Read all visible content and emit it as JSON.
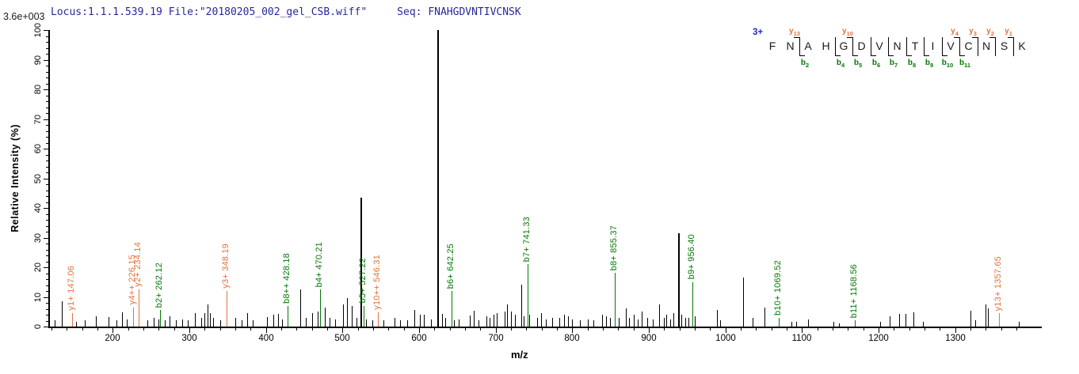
{
  "header": {
    "locus_file": "Locus:1.1.1.539.19 File:\"20180205_002_gel_CSB.wiff\"",
    "seq_label": "Seq:",
    "sequence": "FNAHGDVNTIVCNSK",
    "base_peak_intensity": "3.6e+003"
  },
  "axes": {
    "x_label": "m/z",
    "y_label": "Relative  Intensity (%)",
    "x_min": 118,
    "x_max": 1413,
    "x_major_ticks": [
      200,
      300,
      400,
      500,
      600,
      700,
      800,
      900,
      1000,
      1100,
      1200,
      1300
    ],
    "x_minor_start": 120,
    "x_minor_end": 1380,
    "x_minor_step": 20,
    "y_major_ticks": [
      0,
      10,
      20,
      30,
      40,
      50,
      60,
      70,
      80,
      90,
      100
    ],
    "y_minor_step": 2,
    "ylim": [
      0,
      100
    ]
  },
  "colors": {
    "b_ion": "#057805",
    "y_ion": "#e0743e",
    "peak": "#000000",
    "header_text": "#28289b",
    "charge": "#2525d8"
  },
  "peptide_map": {
    "charge": "3+",
    "residues": [
      "F",
      "N",
      "A",
      "H",
      "G",
      "D",
      "V",
      "N",
      "T",
      "I",
      "V",
      "C",
      "N",
      "S",
      "K"
    ],
    "cuts": [
      {
        "after": 2,
        "y": "y13",
        "b": "b2"
      },
      {
        "after": 4,
        "b": "b4"
      },
      {
        "after": 5,
        "y": "y10",
        "b": "b5"
      },
      {
        "after": 6,
        "b": "b6"
      },
      {
        "after": 7,
        "b": "b7"
      },
      {
        "after": 8,
        "b": "b8"
      },
      {
        "after": 9,
        "b": "b9"
      },
      {
        "after": 10,
        "b": "b10"
      },
      {
        "after": 11,
        "y": "y4",
        "b": "b11"
      },
      {
        "after": 12,
        "y": "y3"
      },
      {
        "after": 13,
        "y": "y2"
      },
      {
        "after": 14,
        "y": "y1"
      }
    ]
  },
  "chart_data": {
    "type": "bar",
    "subtype": "ms2-mass-spectrum",
    "title": "Locus:1.1.1.539.19 File:\"20180205_002_gel_CSB.wiff\" Seq: FNAHGDVNTIVCNSK",
    "xlabel": "m/z",
    "ylabel": "Relative Intensity (%)",
    "xlim": [
      118,
      1413
    ],
    "ylim": [
      0,
      100
    ],
    "grid": false,
    "legend": false,
    "base_peak_absolute_intensity": "3.6e+003",
    "annotated_peaks": [
      {
        "mz": 147.06,
        "intensity": 4.5,
        "ion": "y",
        "label": "y1+ 147.06"
      },
      {
        "mz": 226.15,
        "intensity": 6.5,
        "ion": "y",
        "label": "y4++ 226.15"
      },
      {
        "mz": 234.14,
        "intensity": 12.5,
        "ion": "y",
        "label": "y2+ 234.14"
      },
      {
        "mz": 262.12,
        "intensity": 5.5,
        "ion": "b",
        "label": "b2+ 262.12"
      },
      {
        "mz": 348.19,
        "intensity": 12,
        "ion": "y",
        "label": "y3+ 348.19"
      },
      {
        "mz": 428.18,
        "intensity": 7,
        "ion": "b",
        "label": "b8++ 428.18"
      },
      {
        "mz": 470.21,
        "intensity": 12.5,
        "ion": "b",
        "label": "b4+ 470.21"
      },
      {
        "mz": 527.22,
        "intensity": 7,
        "ion": "b",
        "label": "b5+ 527.22"
      },
      {
        "mz": 546.31,
        "intensity": 4.8,
        "ion": "y",
        "label": "y10++ 546.31"
      },
      {
        "mz": 642.25,
        "intensity": 12,
        "ion": "b",
        "label": "b6+ 642.25"
      },
      {
        "mz": 741.33,
        "intensity": 21,
        "ion": "b",
        "label": "b7+ 741.33"
      },
      {
        "mz": 855.37,
        "intensity": 18,
        "ion": "b",
        "label": "b8+ 855.37"
      },
      {
        "mz": 956.4,
        "intensity": 15,
        "ion": "b",
        "label": "b9+ 956.40"
      },
      {
        "mz": 1069.52,
        "intensity": 3,
        "ion": "b",
        "label": "b10+ 1069.52"
      },
      {
        "mz": 1168.56,
        "intensity": 2,
        "ion": "b",
        "label": "b11+ 1168.56"
      },
      {
        "mz": 1357.65,
        "intensity": 4.5,
        "ion": "y",
        "label": "y13+ 1357.65"
      }
    ],
    "unassigned_peaks": [
      [
        124,
        2
      ],
      [
        133.3,
        8.5
      ],
      [
        152,
        1.5
      ],
      [
        164,
        2.2
      ],
      [
        177.8,
        3.5
      ],
      [
        195,
        3.3
      ],
      [
        205,
        2
      ],
      [
        211.9,
        4.8
      ],
      [
        218,
        2.5
      ],
      [
        245,
        2.2
      ],
      [
        253,
        3
      ],
      [
        259.5,
        2.5
      ],
      [
        268,
        2
      ],
      [
        274,
        3.5
      ],
      [
        282,
        2
      ],
      [
        290.5,
        2.5
      ],
      [
        298,
        2
      ],
      [
        307,
        4.5
      ],
      [
        316,
        3
      ],
      [
        320,
        4.5
      ],
      [
        323.6,
        7.5
      ],
      [
        327,
        4.5
      ],
      [
        331,
        3
      ],
      [
        340,
        2
      ],
      [
        359.8,
        3
      ],
      [
        368,
        2
      ],
      [
        375.3,
        4.5
      ],
      [
        383,
        2
      ],
      [
        401.2,
        3.2
      ],
      [
        409.6,
        4
      ],
      [
        415.7,
        4.3
      ],
      [
        421,
        2.5
      ],
      [
        444.9,
        12.5
      ],
      [
        452,
        3
      ],
      [
        460.5,
        4.5
      ],
      [
        468,
        5
      ],
      [
        476.7,
        6.5
      ],
      [
        483,
        3
      ],
      [
        490,
        2.5
      ],
      [
        500.5,
        7.5
      ],
      [
        505.7,
        9.5
      ],
      [
        511.9,
        7
      ],
      [
        518,
        3
      ],
      [
        523.9,
        43.5
      ],
      [
        531,
        2.5
      ],
      [
        539,
        2
      ],
      [
        553,
        2
      ],
      [
        567.6,
        3
      ],
      [
        575,
        2
      ],
      [
        585,
        2
      ],
      [
        593.5,
        5.5
      ],
      [
        600.7,
        4
      ],
      [
        605.9,
        4
      ],
      [
        616,
        2.5
      ],
      [
        623.8,
        100
      ],
      [
        630,
        4.3
      ],
      [
        634,
        3
      ],
      [
        645,
        2
      ],
      [
        652,
        2.5
      ],
      [
        666.3,
        3.8
      ],
      [
        671.5,
        5.3
      ],
      [
        678,
        2
      ],
      [
        688,
        3.5
      ],
      [
        692,
        3
      ],
      [
        697,
        4
      ],
      [
        701,
        4.5
      ],
      [
        711.3,
        5
      ],
      [
        714.7,
        7.5
      ],
      [
        719.9,
        5
      ],
      [
        725,
        4
      ],
      [
        733.5,
        14
      ],
      [
        737,
        3.5
      ],
      [
        744,
        4
      ],
      [
        754,
        3
      ],
      [
        759,
        4.5
      ],
      [
        765,
        2.5
      ],
      [
        773.5,
        3
      ],
      [
        783,
        3
      ],
      [
        789,
        4
      ],
      [
        794,
        3.5
      ],
      [
        800,
        2.5
      ],
      [
        810,
        2
      ],
      [
        820,
        2.5
      ],
      [
        828,
        2
      ],
      [
        838.5,
        4
      ],
      [
        843.7,
        3.5
      ],
      [
        848.9,
        3
      ],
      [
        861,
        3
      ],
      [
        869.8,
        6
      ],
      [
        874,
        3
      ],
      [
        880,
        4
      ],
      [
        885,
        2.5
      ],
      [
        890.5,
        5
      ],
      [
        898,
        3
      ],
      [
        905,
        2.5
      ],
      [
        912.9,
        7.5
      ],
      [
        919.4,
        3
      ],
      [
        923.2,
        4
      ],
      [
        927.7,
        2.5
      ],
      [
        931.8,
        4.5
      ],
      [
        938.7,
        31.5
      ],
      [
        942.1,
        4
      ],
      [
        947.3,
        3
      ],
      [
        952,
        3
      ],
      [
        960,
        3.5
      ],
      [
        988.6,
        5.5
      ],
      [
        993,
        2
      ],
      [
        1023.1,
        16.5
      ],
      [
        1035.2,
        3
      ],
      [
        1050.7,
        6.5
      ],
      [
        1086,
        1.5
      ],
      [
        1092,
        1.5
      ],
      [
        1107.6,
        2.5
      ],
      [
        1140.6,
        1.5
      ],
      [
        1148,
        1
      ],
      [
        1202.5,
        1.5
      ],
      [
        1214.5,
        3.5
      ],
      [
        1226.6,
        4.3
      ],
      [
        1235,
        4.3
      ],
      [
        1245.4,
        4.8
      ],
      [
        1258,
        1.5
      ],
      [
        1319.5,
        5.2
      ],
      [
        1326.4,
        2
      ],
      [
        1340,
        7.5
      ],
      [
        1342.5,
        6
      ],
      [
        1383.4,
        1.5
      ]
    ]
  }
}
